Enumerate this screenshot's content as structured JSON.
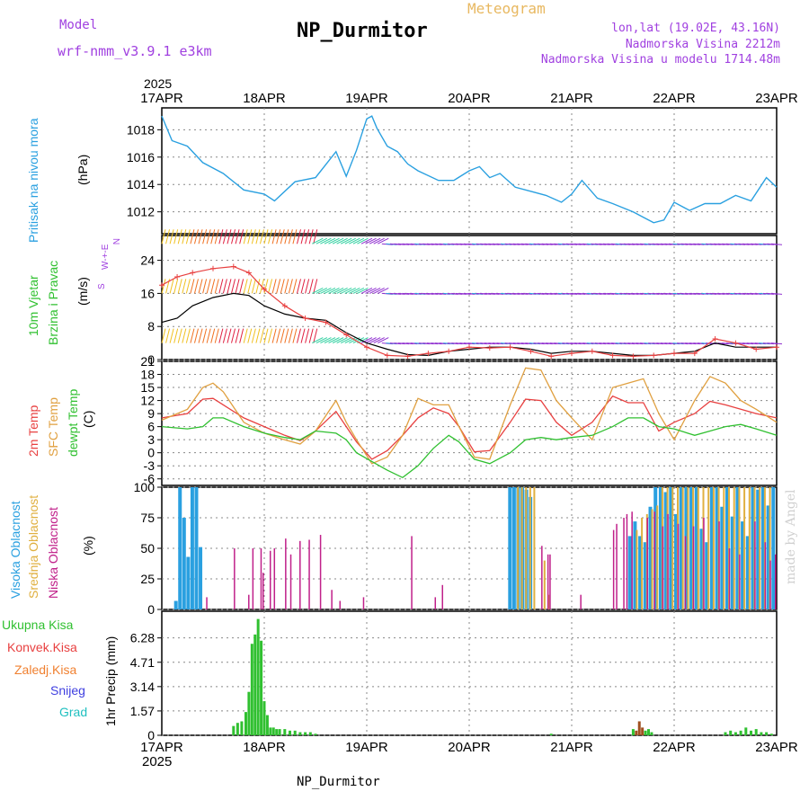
{
  "header": {
    "model_label": "Model",
    "model_name": "wrf-nmm_v3.9.1  e3km",
    "meteogram": "Meteogram",
    "title": "NP_Durmitor",
    "lonlat": "lon,lat (19.02E, 43.16N)",
    "elev": "Nadmorska Visina 2212m",
    "elev_model": "Nadmorska Visina u modelu 1714.48m",
    "footer": "NP_Durmitor",
    "credit": "made by Angel"
  },
  "colors": {
    "pressure": "#2aa0e0",
    "temp2m": "#e84040",
    "sfc": "#e0a040",
    "dew": "#30c030",
    "wind_black": "#000000",
    "gust": "#e84040",
    "cloud_high": "#2aa0e0",
    "cloud_mid": "#e0b040",
    "cloud_low": "#c0208a",
    "precip": "#30c030",
    "conv": "#e84040"
  },
  "chart_data": [
    {
      "type": "line",
      "panel": "pressure",
      "title": "Pritisak na nivou mora",
      "ylabel": "(hPa)",
      "ylim": [
        1010.4,
        1019.6
      ],
      "yticks": [
        1012,
        1014,
        1016,
        1018
      ],
      "x": [
        0,
        0.1,
        0.25,
        0.4,
        0.6,
        0.8,
        1.0,
        1.1,
        1.3,
        1.5,
        1.7,
        1.8,
        1.9,
        2.0,
        2.05,
        2.1,
        2.2,
        2.3,
        2.4,
        2.5,
        2.7,
        2.85,
        3.0,
        3.1,
        3.2,
        3.3,
        3.45,
        3.6,
        3.75,
        3.9,
        4.0,
        4.1,
        4.25,
        4.4,
        4.6,
        4.8,
        4.9,
        5.0,
        5.15,
        5.3,
        5.45,
        5.6,
        5.75,
        5.9,
        6.0
      ],
      "values": [
        1019,
        1017.2,
        1016.8,
        1015.6,
        1014.8,
        1013.6,
        1013.3,
        1012.8,
        1014.2,
        1014.5,
        1016.4,
        1014.6,
        1016.5,
        1018.8,
        1019,
        1018.1,
        1016.8,
        1016.4,
        1015.5,
        1015,
        1014.3,
        1014.3,
        1015,
        1015.3,
        1014.5,
        1014.8,
        1013.8,
        1013.5,
        1013.2,
        1012.7,
        1013.3,
        1014.3,
        1013,
        1012.6,
        1012,
        1011.2,
        1011.4,
        1012.7,
        1012.1,
        1012.6,
        1012.6,
        1013.2,
        1012.8,
        1014.5,
        1013.8
      ]
    },
    {
      "type": "line",
      "panel": "wind",
      "title": "10m Vjetar Brzina i Pravac",
      "ylabel": "(m/s)",
      "ylim": [
        0,
        30
      ],
      "yticks": [
        0,
        8,
        16,
        24
      ],
      "direction_legend": "N, W-+-E, S",
      "barb_rows": [
        4,
        16,
        28
      ],
      "x": [
        0,
        0.15,
        0.3,
        0.5,
        0.7,
        0.85,
        1.0,
        1.2,
        1.4,
        1.6,
        1.8,
        2.0,
        2.2,
        2.4,
        2.6,
        2.8,
        3.0,
        3.2,
        3.4,
        3.6,
        3.8,
        4.0,
        4.2,
        4.4,
        4.6,
        4.8,
        5.0,
        5.2,
        5.4,
        5.6,
        5.8,
        6.0
      ],
      "series": [
        {
          "name": "speed",
          "values": [
            9,
            10,
            13,
            15,
            16,
            15.5,
            13,
            11,
            10,
            9.5,
            6.5,
            4,
            2.5,
            1.2,
            1,
            2,
            2.5,
            3,
            3,
            2.5,
            1.5,
            2,
            2,
            1.5,
            1,
            1,
            1.5,
            2,
            4,
            3,
            3,
            3
          ]
        },
        {
          "name": "gust",
          "values": [
            18,
            20,
            21,
            22,
            22.5,
            21,
            17,
            13,
            10,
            9,
            6,
            3,
            1,
            0.8,
            1.5,
            2,
            3,
            2.8,
            3,
            2,
            0.8,
            1.5,
            2,
            1,
            0.8,
            1,
            1.5,
            1.5,
            5,
            4,
            2.5,
            3
          ]
        }
      ]
    },
    {
      "type": "line",
      "panel": "temperature",
      "ylabel": "(C)",
      "ylim": [
        -7.5,
        21
      ],
      "yticks": [
        -6,
        -3,
        0,
        3,
        6,
        9,
        12,
        15,
        18,
        21
      ],
      "legend": [
        "2m Temp",
        "SFC Temp",
        "dewpt Temp"
      ],
      "x": [
        0,
        0.25,
        0.4,
        0.5,
        0.6,
        0.8,
        1.0,
        1.2,
        1.35,
        1.5,
        1.7,
        1.8,
        1.9,
        2.05,
        2.2,
        2.35,
        2.5,
        2.65,
        2.8,
        2.9,
        3.05,
        3.2,
        3.4,
        3.55,
        3.7,
        3.85,
        4.0,
        4.2,
        4.4,
        4.55,
        4.7,
        4.85,
        5.0,
        5.2,
        5.35,
        5.5,
        5.65,
        5.8,
        6.0
      ],
      "series": [
        {
          "name": "2m Temp",
          "values": [
            8,
            9,
            12.3,
            12.5,
            11,
            8,
            6,
            4,
            2.8,
            5,
            9.5,
            6,
            2.5,
            -1.5,
            0.5,
            4,
            8,
            10.3,
            9,
            6,
            0.2,
            0.5,
            7,
            12.3,
            12,
            7,
            4,
            7,
            13,
            11.5,
            11.5,
            5,
            7,
            9,
            11.8,
            11,
            10,
            9,
            8
          ]
        },
        {
          "name": "SFC Temp",
          "values": [
            7.5,
            10,
            15,
            16,
            14,
            7,
            4.5,
            3,
            2,
            5,
            12,
            7,
            3,
            -2.5,
            -1,
            4,
            12.5,
            11,
            11,
            6,
            -1,
            -1.5,
            11,
            19.5,
            19,
            12,
            8,
            3,
            15,
            16,
            17,
            9,
            3,
            12,
            17.5,
            16,
            12,
            10,
            7
          ]
        },
        {
          "name": "dewpt Temp",
          "values": [
            6,
            5.5,
            6,
            8,
            8,
            6,
            4.5,
            3.5,
            3,
            5,
            4.5,
            3,
            0,
            -2,
            -4,
            -5.7,
            -3,
            1,
            4,
            2.5,
            -1.5,
            -2.5,
            0,
            3,
            3.5,
            3,
            3.5,
            4,
            6,
            8,
            8,
            6,
            5.5,
            4,
            5,
            6,
            6.5,
            5.5,
            4
          ]
        }
      ]
    },
    {
      "type": "bar",
      "panel": "clouds",
      "ylabel": "(%)",
      "ylim": [
        0,
        100
      ],
      "yticks": [
        0,
        25,
        50,
        75,
        100
      ],
      "legend": [
        "Visoka Oblacnost",
        "Srednja Oblacnost",
        "Niska Oblacnost"
      ],
      "series": [
        {
          "name": "Visoka Oblacnost",
          "x": [
            0.12,
            0.16,
            0.2,
            0.24,
            0.28,
            0.32,
            0.36,
            0.4,
            3.38,
            3.42,
            3.46,
            3.5,
            3.54,
            3.58,
            4.55,
            4.6,
            4.65,
            4.7,
            4.75,
            4.8,
            4.85,
            4.9,
            4.95,
            5.0,
            5.05,
            5.1,
            5.15,
            5.2,
            5.25,
            5.3,
            5.35,
            5.4,
            5.45,
            5.5,
            5.55,
            5.6,
            5.65,
            5.7,
            5.75,
            5.8,
            5.85,
            5.9,
            5.95
          ],
          "values": [
            7,
            100,
            75,
            43,
            100,
            100,
            51,
            0,
            100,
            100,
            100,
            100,
            98,
            92,
            60,
            72,
            60,
            55,
            84,
            100,
            100,
            96,
            100,
            78,
            100,
            100,
            100,
            100,
            66,
            55,
            100,
            100,
            84,
            100,
            76,
            100,
            72,
            60,
            100,
            98,
            100,
            85,
            100
          ]
        },
        {
          "name": "Srednja Oblacnost",
          "x": [
            3.44,
            3.48,
            3.52,
            3.56,
            3.6,
            3.7,
            3.74,
            4.6,
            4.65,
            4.7,
            4.75,
            4.8,
            4.85,
            4.9,
            4.95,
            5.0,
            5.05,
            5.1,
            5.15,
            5.2,
            5.25,
            5.3,
            5.35,
            5.4,
            5.45,
            5.5,
            5.55,
            5.6,
            5.65,
            5.7,
            5.75,
            5.8,
            5.85,
            5.9
          ],
          "values": [
            100,
            100,
            100,
            100,
            100,
            40,
            12,
            65,
            75,
            78,
            82,
            85,
            100,
            100,
            100,
            100,
            100,
            100,
            100,
            100,
            100,
            100,
            100,
            100,
            100,
            100,
            100,
            100,
            100,
            100,
            100,
            100,
            100,
            100
          ]
        },
        {
          "name": "Niska Oblacnost",
          "x": [
            0.45,
            0.72,
            0.86,
            0.9,
            0.98,
            1.0,
            1.07,
            1.11,
            1.22,
            1.27,
            1.36,
            1.45,
            1.56,
            1.67,
            1.75,
            1.98,
            2.45,
            2.68,
            2.75,
            3.72,
            3.78,
            3.8,
            4.1,
            4.42,
            4.45,
            4.52,
            4.55,
            4.6,
            4.75,
            4.82,
            4.9,
            4.95,
            5.05,
            5.12,
            5.2,
            5.3,
            5.45,
            5.55,
            5.65,
            5.8,
            5.9,
            5.95,
            6.0
          ],
          "values": [
            10,
            50,
            12,
            50,
            50,
            30,
            48,
            50,
            58,
            45,
            56,
            57,
            61,
            16,
            7,
            10,
            60,
            10,
            20,
            52,
            45,
            45,
            12,
            65,
            70,
            75,
            78,
            80,
            75,
            80,
            68,
            78,
            70,
            60,
            68,
            75,
            72,
            50,
            45,
            72,
            55,
            40,
            45
          ]
        }
      ]
    },
    {
      "type": "bar",
      "panel": "precip",
      "ylabel": "1hr Precip (mm)",
      "ylim": [
        0,
        8
      ],
      "yticks": [
        0,
        1.57,
        3.14,
        4.71,
        6.28
      ],
      "legend": [
        "Ukupna Kisa",
        "Konvek.Kisa",
        "Zaledj.Kisa",
        "Snijeg",
        "Grad"
      ],
      "x": [
        0.7,
        0.74,
        0.78,
        0.82,
        0.85,
        0.88,
        0.91,
        0.94,
        0.97,
        1.0,
        1.03,
        1.06,
        1.09,
        1.12,
        1.15,
        1.2,
        1.25,
        1.3,
        1.35,
        1.4,
        1.45,
        1.5,
        3.8,
        4.6,
        4.63,
        4.66,
        4.69,
        4.72,
        4.75,
        4.78,
        5.5,
        5.55,
        5.6,
        5.65,
        5.7,
        5.75,
        5.8,
        5.85,
        5.9,
        5.95
      ],
      "values": [
        0.6,
        0.8,
        0.9,
        1.5,
        2.8,
        5.9,
        6.5,
        7.5,
        6.1,
        2.2,
        1.3,
        0.5,
        0.5,
        0.4,
        0.4,
        0.4,
        0.3,
        0.3,
        0.2,
        0.2,
        0.2,
        0.1,
        0.1,
        0.4,
        0.3,
        0.9,
        0.5,
        0.3,
        0.4,
        0.2,
        0.2,
        0.3,
        0.2,
        0.3,
        0.5,
        0.3,
        0.4,
        0.2,
        0.2,
        0.1
      ]
    }
  ],
  "axes": {
    "x_labels": [
      "17APR",
      "18APR",
      "19APR",
      "20APR",
      "21APR",
      "22APR",
      "23APR"
    ],
    "year": "2025"
  },
  "labels": {
    "pressure_title": "Pritisak na nivou mora",
    "pressure_unit": "(hPa)",
    "wind_title1": "10m Vjetar",
    "wind_title2": "Brzina i Pravac",
    "wind_unit": "(m/s)",
    "temp_2m": "2m Temp",
    "temp_sfc": "SFC Temp",
    "temp_dew": "dewpt Temp",
    "temp_unit": "(C)",
    "cloud_high": "Visoka Oblacnost",
    "cloud_mid": "Srednja Oblacnost",
    "cloud_low": "Niska Oblacnost",
    "cloud_unit": "(%)",
    "precip_total": "Ukupna Kisa",
    "precip_conv": "Konvek.Kisa",
    "precip_frz": "Zaledj.Kisa",
    "precip_snow": "Snijeg",
    "precip_hail": "Grad",
    "precip_unit": "1hr Precip (mm)",
    "dir_n": "N",
    "dir_we": "W-+-E",
    "dir_s": "S"
  }
}
